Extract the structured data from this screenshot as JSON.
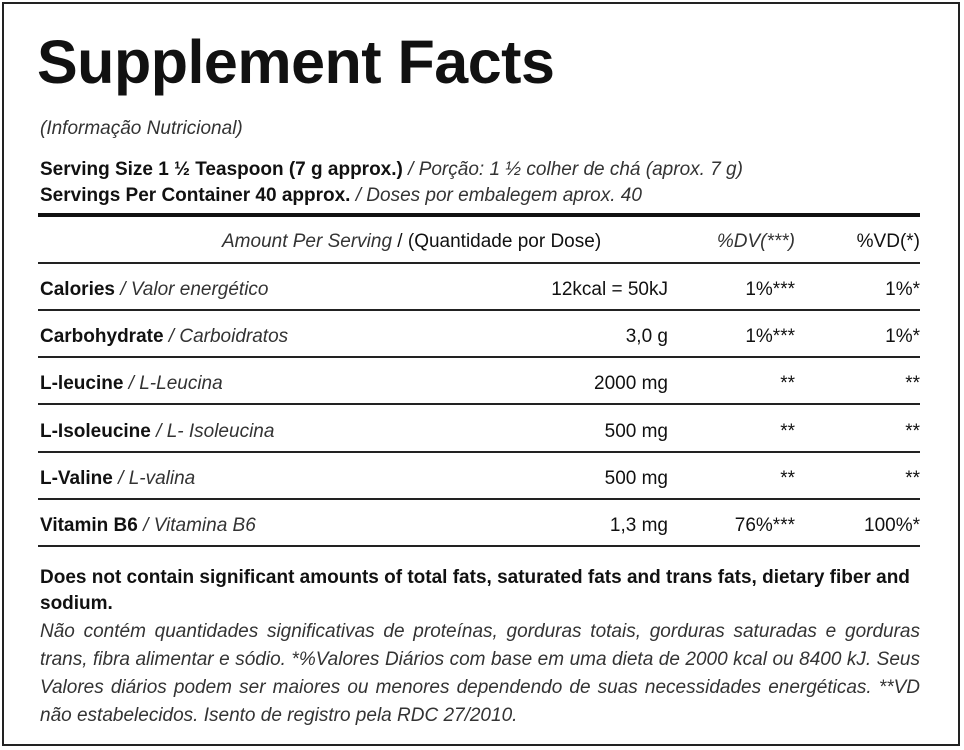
{
  "label": {
    "title": "Supplement Facts",
    "subtitle": "(Informação Nutricional)",
    "serving_size_bold": "Serving Size 1 ½ Teaspoon (7 g approx.)",
    "serving_size_it": " / Porção: 1 ½ colher de chá (aprox. 7 g)",
    "servings_bold": "Servings Per Container 40 approx.",
    "servings_it": " / Doses por embalegem aprox. 40"
  },
  "header": {
    "amount_it": "Amount Per Serving",
    "amount_pt": " / (Quantidade por Dose)",
    "dv": "%DV(***)",
    "vd": "%VD(*)"
  },
  "rows": [
    {
      "name": "Calories",
      "name_pt": " / Valor energético",
      "amount": "12kcal = 50kJ",
      "dv": "1%***",
      "vd": "1%*"
    },
    {
      "name": "Carbohydrate",
      "name_pt": " / Carboidratos",
      "amount": "3,0 g",
      "dv": "1%***",
      "vd": "1%*"
    },
    {
      "name": "L-leucine",
      "name_pt": " / L-Leucina",
      "amount": "2000 mg",
      "dv": "**",
      "vd": "**"
    },
    {
      "name": "L-Isoleucine",
      "name_pt": " / L- Isoleucina",
      "amount": "500 mg",
      "dv": "**",
      "vd": "**"
    },
    {
      "name": "L-Valine",
      "name_pt": " / L-valina",
      "amount": "500 mg",
      "dv": "**",
      "vd": "**"
    },
    {
      "name": "Vitamin B6",
      "name_pt": " / Vitamina B6",
      "amount": "1,3 mg",
      "dv": "76%***",
      "vd": "100%*"
    }
  ],
  "notes": {
    "bold": "Does not contain significant amounts of total fats, saturated fats and trans fats, dietary fiber and sodium.",
    "italic": "Não contém quantidades significativas de proteínas, gorduras totais, gorduras saturadas e gorduras trans, fibra alimentar e sódio. *%Valores Diários com base em uma dieta de 2000 kcal ou 8400 kJ. Seus Valores diários podem ser maiores ou menores dependendo de suas necessidades energéticas. **VD não estabelecidos. Isento de registro pela RDC 27/2010."
  }
}
